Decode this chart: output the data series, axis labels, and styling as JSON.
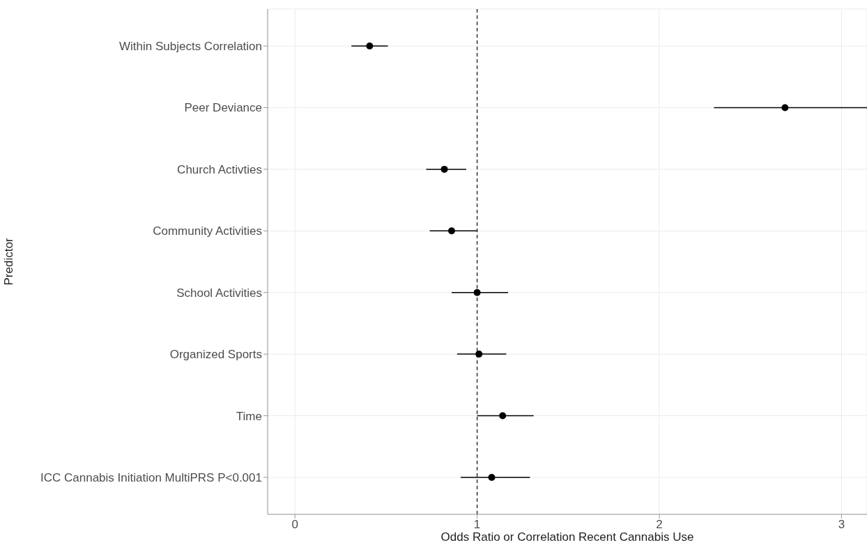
{
  "chart_data": {
    "type": "scatter",
    "orientation": "horizontal",
    "xlabel": "Odds Ratio or Correlation Recent Cannabis Use",
    "ylabel": "Predictor",
    "categories": [
      "Within Subjects Correlation",
      "Peer Deviance",
      "Church Activties",
      "Community Activities",
      "School Activities",
      "Organized Sports",
      "Time",
      "ICC Cannabis Initiation MultiPRS P<0.001"
    ],
    "values": [
      0.41,
      2.69,
      0.82,
      0.86,
      1.0,
      1.01,
      1.14,
      1.08
    ],
    "errors": [
      [
        0.31,
        0.51
      ],
      [
        2.3,
        3.14
      ],
      [
        0.72,
        0.94
      ],
      [
        0.74,
        1.0
      ],
      [
        0.86,
        1.17
      ],
      [
        0.89,
        1.16
      ],
      [
        1.0,
        1.31
      ],
      [
        0.91,
        1.29
      ]
    ],
    "color": "#000000",
    "marker": "circle",
    "xlim": [
      -0.15,
      3.14
    ],
    "xticks": [
      0,
      1,
      2,
      3
    ],
    "grid": true,
    "ref_lines": [
      {
        "axis": "x",
        "value": 1,
        "line_style": "dashed",
        "color": "#333333"
      }
    ]
  }
}
